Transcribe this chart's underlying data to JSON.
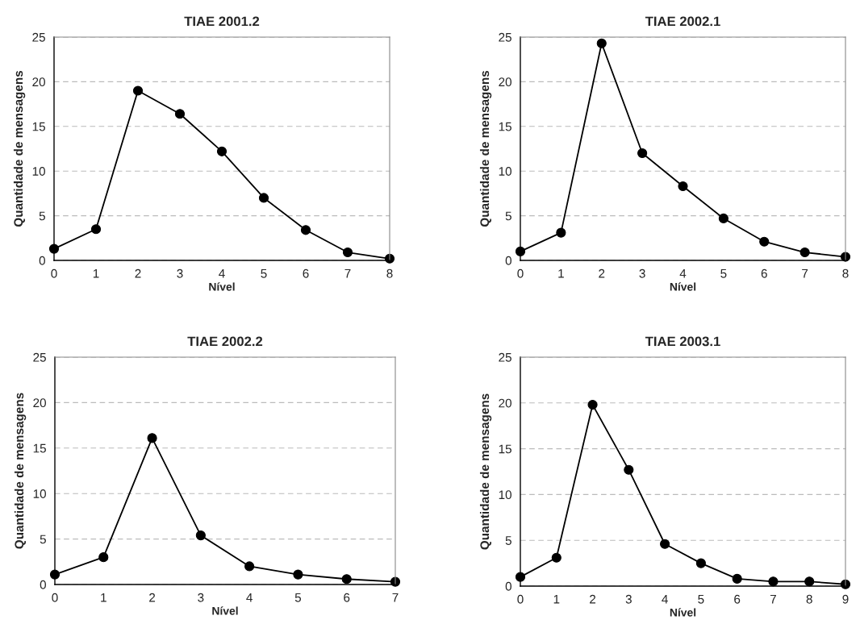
{
  "chart_data": [
    {
      "type": "line",
      "title": "TIAE 2001.2",
      "xlabel": "Nível",
      "ylabel": "Quantidade de mensagens",
      "x": [
        0,
        1,
        2,
        3,
        4,
        5,
        6,
        7,
        8
      ],
      "series": [
        {
          "color": "#000000",
          "values": [
            1.3,
            3.5,
            19.0,
            16.4,
            12.2,
            7.0,
            3.4,
            0.9,
            0.2
          ]
        }
      ],
      "xlim": [
        0,
        8
      ],
      "xticks": [
        0,
        1,
        2,
        3,
        4,
        5,
        6,
        7,
        8
      ],
      "ylim": [
        0,
        25
      ],
      "yticks": [
        0,
        5,
        10,
        15,
        20,
        25
      ],
      "grid": "y",
      "marker": "circle",
      "line_style": "solid"
    },
    {
      "type": "line",
      "title": "TIAE 2002.1",
      "xlabel": "Nível",
      "ylabel": "Quantidade de mensagens",
      "x": [
        0,
        1,
        2,
        3,
        4,
        5,
        6,
        7,
        8
      ],
      "series": [
        {
          "color": "#000000",
          "values": [
            1.0,
            3.1,
            24.3,
            12.0,
            8.3,
            4.7,
            2.1,
            0.9,
            0.4
          ]
        }
      ],
      "xlim": [
        0,
        8
      ],
      "xticks": [
        0,
        1,
        2,
        3,
        4,
        5,
        6,
        7,
        8
      ],
      "ylim": [
        0,
        25
      ],
      "yticks": [
        0,
        5,
        10,
        15,
        20,
        25
      ],
      "grid": "y",
      "marker": "circle",
      "line_style": "solid"
    },
    {
      "type": "line",
      "title": "TIAE 2002.2",
      "xlabel": "Nível",
      "ylabel": "Quantidade de mensagens",
      "x": [
        0,
        1,
        2,
        3,
        4,
        5,
        6,
        7
      ],
      "series": [
        {
          "color": "#000000",
          "values": [
            1.1,
            3.0,
            16.1,
            5.4,
            2.0,
            1.1,
            0.6,
            0.3
          ]
        }
      ],
      "xlim": [
        0,
        7
      ],
      "xticks": [
        0,
        1,
        2,
        3,
        4,
        5,
        6,
        7
      ],
      "ylim": [
        0,
        25
      ],
      "yticks": [
        0,
        5,
        10,
        15,
        20,
        25
      ],
      "grid": "y",
      "marker": "circle",
      "line_style": "solid"
    },
    {
      "type": "line",
      "title": "TIAE 2003.1",
      "xlabel": "Nível",
      "ylabel": "Quantidade de mensagens",
      "x": [
        0,
        1,
        2,
        3,
        4,
        5,
        6,
        7,
        8,
        9
      ],
      "series": [
        {
          "color": "#000000",
          "values": [
            1.0,
            3.1,
            19.8,
            12.7,
            4.6,
            2.5,
            0.8,
            0.5,
            0.5,
            0.2
          ]
        }
      ],
      "xlim": [
        0,
        9
      ],
      "xticks": [
        0,
        1,
        2,
        3,
        4,
        5,
        6,
        7,
        8,
        9
      ],
      "ylim": [
        0,
        25
      ],
      "yticks": [
        0,
        5,
        10,
        15,
        20,
        25
      ],
      "grid": "y",
      "marker": "circle",
      "line_style": "solid"
    }
  ]
}
